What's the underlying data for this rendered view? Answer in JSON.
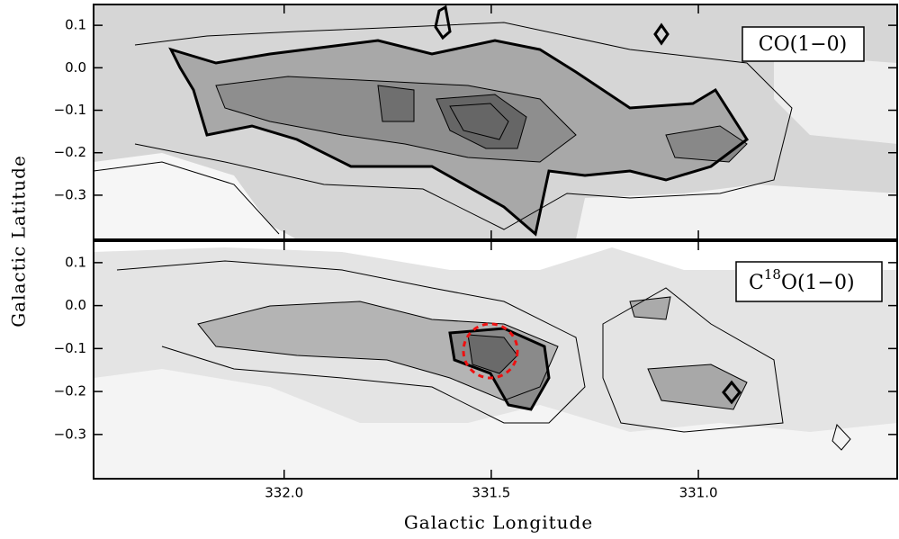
{
  "chart_data": [
    {
      "type": "contour",
      "annotation": "CO(1−0)",
      "ylabel": "Galactic Latitude",
      "xlim": [
        332.46,
        330.52
      ],
      "ylim": [
        -0.404,
        0.149
      ],
      "yticks": [
        0.1,
        {
          "value": 0,
          "label": "0.0"
        },
        {
          "value": -0.1,
          "label": "−0.1"
        },
        {
          "value": -0.2,
          "label": "−0.2"
        },
        {
          "value": -0.3,
          "label": "−0.3"
        }
      ]
    },
    {
      "type": "contour",
      "annotation": {
        "base": "C",
        "sup": "18",
        "rest": "O(1−0)"
      },
      "xlabel": "Galactic Longitude",
      "xlim": [
        332.46,
        330.52
      ],
      "ylim": [
        -0.403,
        0.15
      ],
      "xticks": [
        {
          "value": 332,
          "label": "332.0"
        },
        331.5,
        {
          "value": 331,
          "label": "331.0"
        }
      ],
      "yticks": [
        0.1,
        {
          "value": 0,
          "label": "0.0"
        },
        {
          "value": -0.1,
          "label": "−0.1"
        },
        {
          "value": -0.2,
          "label": "−0.2"
        },
        {
          "value": -0.3,
          "label": "−0.3"
        }
      ]
    }
  ]
}
